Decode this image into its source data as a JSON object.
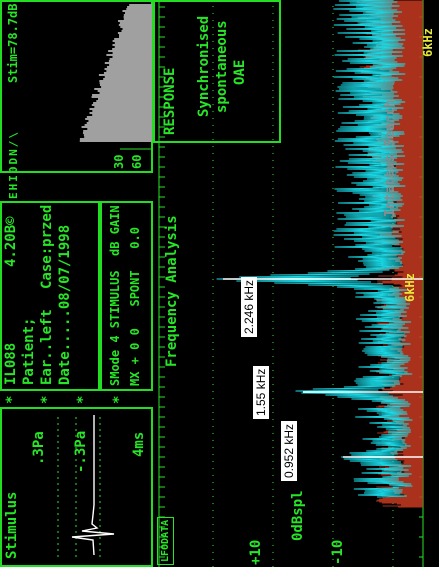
{
  "stimulus": {
    "title": "Stimulus",
    "p_pos": ".3Pa",
    "p_neg": "-.3Pa",
    "time": "4ms"
  },
  "patient": {
    "id": "IL088",
    "version": "4.20B©",
    "patient": "Patient;",
    "ear": "Ear..left",
    "case": "Case:przed",
    "date": "Date.....08/07/1998"
  },
  "mode": {
    "header": "SMode 4 STIMULUS  dB GAIN",
    "values": "MX + 0 0   SPONT   0.0"
  },
  "analysis": {
    "title": "Frequency Analysis",
    "tag": "LFODATA",
    "y_plus": "+10",
    "zero": "0dBspl",
    "y_minus": "-10",
    "khz": "6kHz",
    "khz2": "6kHz",
    "watermark": "Intanaus Search"
  },
  "peaks": [
    {
      "label": "0.952 kHz",
      "f": 0.952
    },
    {
      "label": "1.55 kHz",
      "f": 1.55
    },
    {
      "label": "2.246 kHz",
      "f": 2.246
    }
  ],
  "stim_meter": {
    "label": "Stim=78.7dB",
    "tick1": "60",
    "tick2": "30"
  },
  "response": {
    "title": "RESPONSE",
    "line1": "Synchronised",
    "line2": "spontaneous",
    "line3": "OAE"
  },
  "indicators": "EHI0DN/\\",
  "colors": {
    "green": "#27e527",
    "cyan": "#19d9e6",
    "red": "#c83a20",
    "grey": "#a0a0a0"
  }
}
